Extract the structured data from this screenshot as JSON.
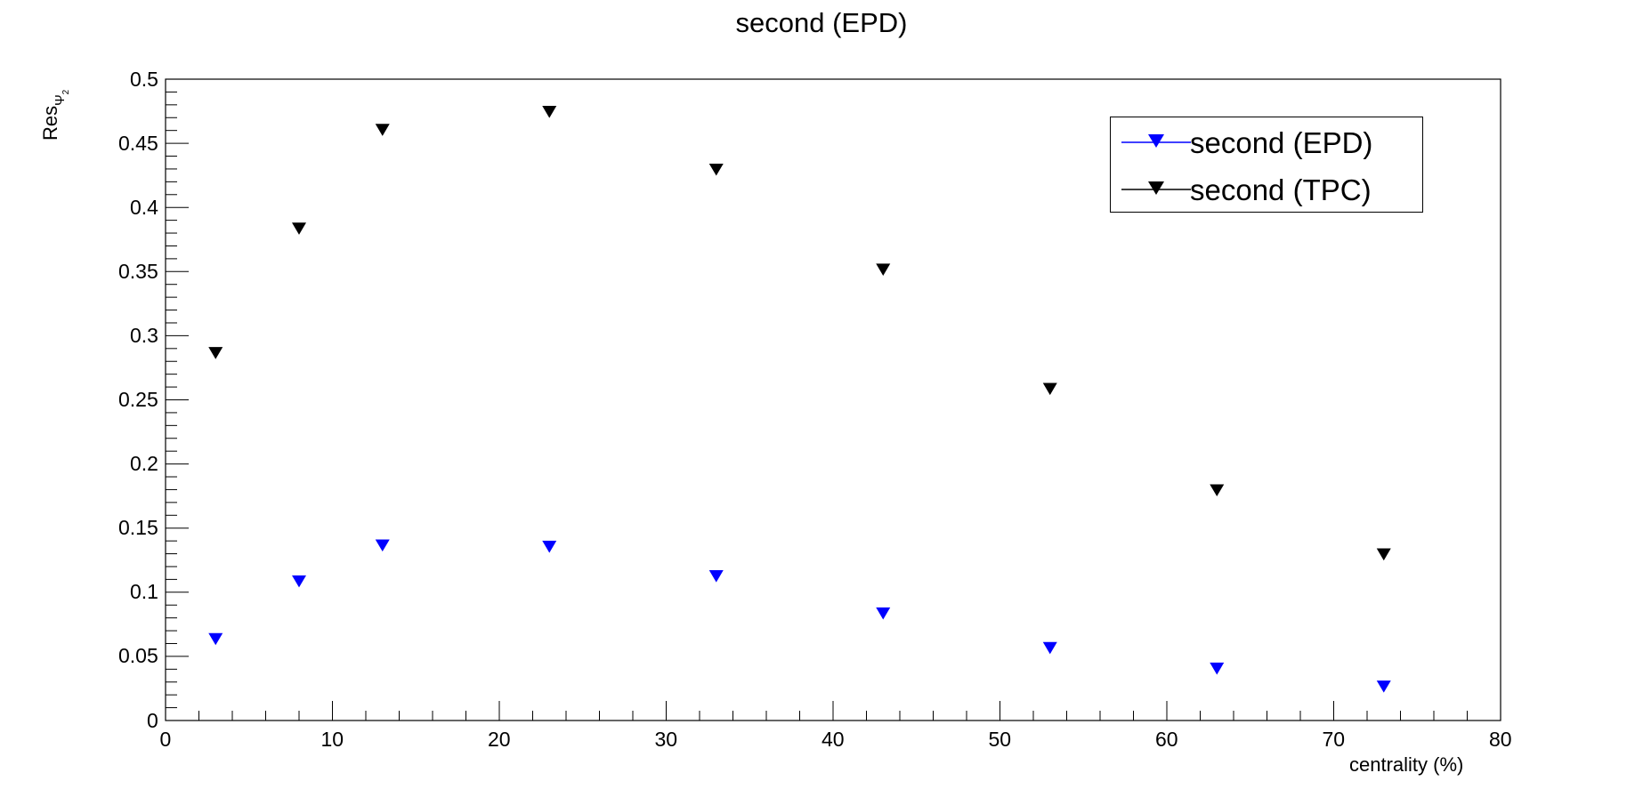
{
  "chart_data": {
    "type": "scatter",
    "title": "second (EPD)",
    "xlabel": "centrality (%)",
    "ylabel": {
      "main": "Res",
      "sub": "Ψ",
      "subsub": "2"
    },
    "xlim": [
      0,
      80
    ],
    "ylim": [
      0,
      0.5
    ],
    "xticks": [
      0,
      10,
      20,
      30,
      40,
      50,
      60,
      70,
      80
    ],
    "yticks": [
      0,
      0.05,
      0.1,
      0.15,
      0.2,
      0.25,
      0.3,
      0.35,
      0.4,
      0.45,
      0.5
    ],
    "xtick_labels": [
      "0",
      "10",
      "20",
      "30",
      "40",
      "50",
      "60",
      "70",
      "80"
    ],
    "ytick_labels": [
      "0",
      "0.05",
      "0.1",
      "0.15",
      "0.2",
      "0.25",
      "0.3",
      "0.35",
      "0.4",
      "0.45",
      "0.5"
    ],
    "grid": false,
    "legend_position": "top-right",
    "marker": "triangle-down",
    "x": [
      3,
      8,
      13,
      23,
      33,
      43,
      53,
      63,
      73
    ],
    "series": [
      {
        "name": "second (EPD)",
        "color": "#0000ff",
        "values": [
          0.064,
          0.109,
          0.137,
          0.136,
          0.113,
          0.084,
          0.057,
          0.041,
          0.027
        ]
      },
      {
        "name": "second (TPC)",
        "color": "#000000",
        "values": [
          0.287,
          0.384,
          0.461,
          0.475,
          0.43,
          0.352,
          0.259,
          0.18,
          0.13
        ]
      }
    ]
  }
}
